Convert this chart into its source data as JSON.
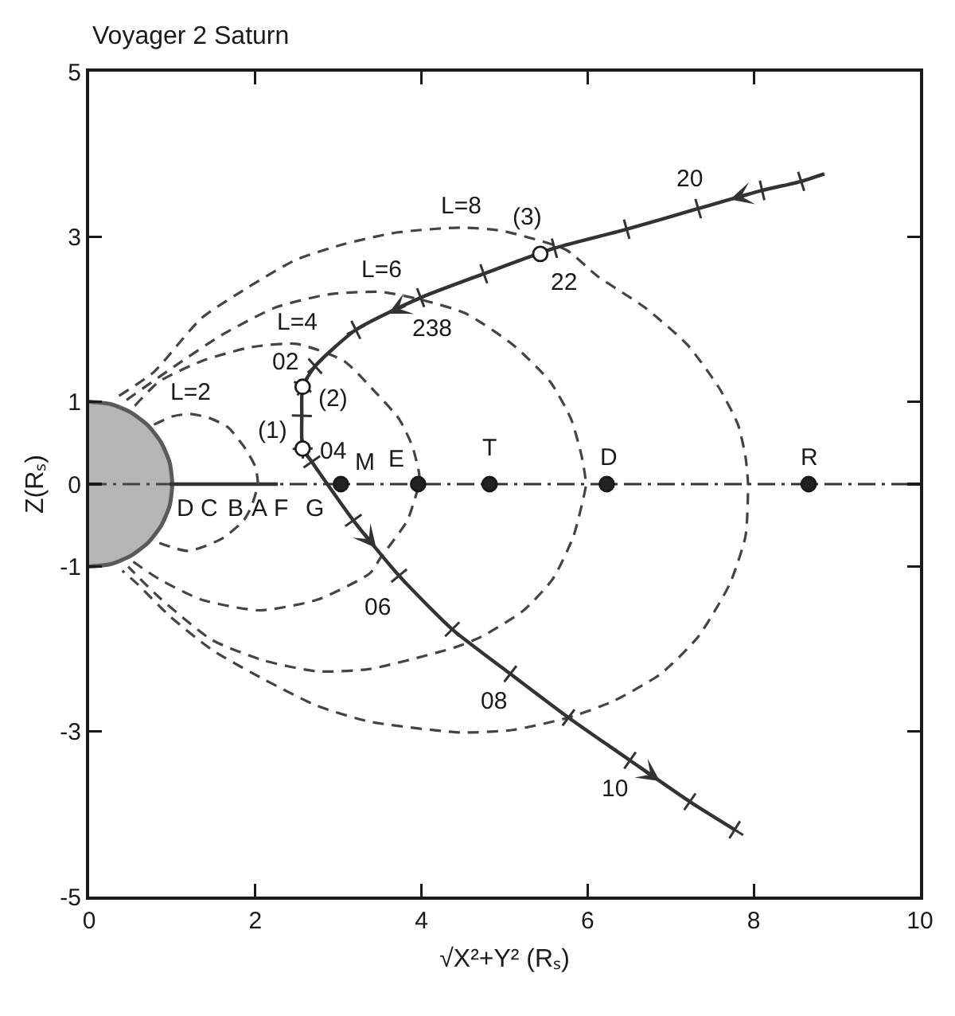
{
  "chart_data": {
    "type": "line",
    "title": "Voyager 2 Saturn",
    "xlabel": "√X²+Y² (Rₛ)",
    "ylabel": "Z(Rₛ)",
    "xlim": [
      0,
      10
    ],
    "xticks": [
      0,
      2,
      4,
      6,
      8,
      10
    ],
    "ylim": [
      -5,
      5
    ],
    "yticks": [
      -5,
      -3,
      -1,
      0,
      1,
      3,
      5
    ],
    "grid": false,
    "legend": false,
    "series": [
      {
        "type": "area",
        "color": "#5a5a5a",
        "x": [
          0,
          0.26,
          0.5,
          0.71,
          0.87,
          0.97,
          1,
          0.97,
          0.87,
          0.71,
          0.5,
          0.26,
          0
        ],
        "values": [
          1,
          0.97,
          0.87,
          0.71,
          0.5,
          0.26,
          0,
          -0.26,
          -0.5,
          -0.71,
          -0.87,
          -0.97,
          -1
        ]
      },
      {
        "color": "#333333",
        "line_style": "solid",
        "x": [
          0.97,
          2.27
        ],
        "values": [
          0,
          0
        ]
      },
      {
        "name": "L=2",
        "color": "#444444",
        "line_style": "dashed",
        "x": [
          0.78,
          1.0,
          1.22,
          1.45,
          1.67,
          1.86,
          2.0,
          2.03,
          1.95,
          1.86,
          1.6,
          1.19,
          0.78
        ],
        "values": [
          0.72,
          0.82,
          0.85,
          0.8,
          0.69,
          0.46,
          0.21,
          0,
          -0.28,
          -0.44,
          -0.66,
          -0.81,
          -0.69
        ]
      },
      {
        "name": "L=4",
        "color": "#444444",
        "line_style": "dashed",
        "x": [
          0.55,
          0.84,
          1.35,
          1.95,
          2.5,
          3.07,
          3.45,
          3.73,
          3.89,
          3.97,
          3.98,
          3.96,
          3.83,
          3.51,
          3.38,
          2.75,
          2.05,
          1.35,
          0.84,
          0.5
        ],
        "values": [
          0.95,
          1.24,
          1.49,
          1.66,
          1.7,
          1.49,
          1.11,
          0.79,
          0.46,
          0.14,
          0,
          -0.05,
          -0.44,
          -0.89,
          -1.08,
          -1.4,
          -1.53,
          -1.4,
          -1.15,
          -0.92
        ]
      },
      {
        "name": "L=6",
        "color": "#444444",
        "line_style": "dashed",
        "x": [
          0.45,
          1.03,
          1.6,
          2.24,
          2.88,
          3.51,
          4.02,
          4.53,
          5.1,
          5.55,
          5.8,
          5.93,
          5.98,
          5.96,
          5.83,
          5.58,
          5.23,
          4.72,
          4.4,
          3.38,
          2.75,
          2.11,
          1.48,
          0.84,
          0.47
        ],
        "values": [
          1.02,
          1.43,
          1.81,
          2.14,
          2.3,
          2.33,
          2.23,
          2.07,
          1.69,
          1.24,
          0.79,
          0.33,
          0,
          -0.12,
          -0.63,
          -1.15,
          -1.53,
          -1.85,
          -1.98,
          -2.24,
          -2.27,
          -2.14,
          -1.89,
          -1.37,
          -1.0
        ]
      },
      {
        "name": "L=8",
        "color": "#444444",
        "line_style": "dashed",
        "x": [
          0.36,
          0.78,
          1.35,
          1.92,
          2.49,
          3.07,
          3.7,
          4.47,
          4.97,
          5.74,
          6.12,
          6.69,
          7.2,
          7.58,
          7.81,
          7.9,
          7.93,
          7.9,
          7.71,
          7.33,
          6.88,
          6.31,
          5.77,
          5.1,
          4.47,
          3.38,
          2.75,
          2.11,
          1.48,
          0.97,
          0.58,
          0.4
        ],
        "values": [
          1.07,
          1.36,
          2.01,
          2.39,
          2.72,
          2.91,
          3.05,
          3.11,
          3.07,
          2.84,
          2.52,
          2.14,
          1.69,
          1.17,
          0.72,
          0.33,
          0,
          -0.63,
          -1.21,
          -1.85,
          -2.3,
          -2.63,
          -2.83,
          -2.98,
          -3.01,
          -2.88,
          -2.69,
          -2.37,
          -2.01,
          -1.6,
          -1.21,
          -1.05
        ]
      },
      {
        "color": "#333333",
        "line_style": "solid",
        "marker": "cross",
        "x": [
          8.85,
          8.57,
          8.1,
          7.33,
          6.47,
          5.6,
          4.75,
          3.99,
          3.21,
          2.72,
          2.57,
          2.56,
          2.57,
          2.68,
          3.18,
          3.73,
          4.37,
          5.07,
          5.77,
          6.51,
          7.23,
          7.77
        ],
        "values": [
          3.76,
          3.67,
          3.56,
          3.34,
          3.09,
          2.86,
          2.55,
          2.26,
          1.87,
          1.43,
          1.18,
          0.83,
          0.43,
          0.27,
          -0.44,
          -1.11,
          -1.76,
          -2.3,
          -2.83,
          -3.35,
          -3.85,
          -4.19
        ]
      },
      {
        "type": "scatter",
        "color": "#222222",
        "marker": "circle",
        "x": [
          3.03,
          3.96,
          4.82,
          6.23,
          8.66
        ],
        "values": [
          0,
          0,
          0,
          0,
          0
        ]
      },
      {
        "type": "scatter",
        "color": "#ffffff",
        "marker": "circle",
        "x": [
          2.57,
          2.57,
          5.43
        ],
        "values": [
          0.43,
          1.18,
          2.79
        ]
      }
    ],
    "ref_lines": [
      {
        "axis": "y",
        "value": 0,
        "line_style": "dashdot",
        "color": "#333333"
      }
    ],
    "annotations": [
      {
        "text": "20",
        "x": 7.33,
        "y": 3.34
      },
      {
        "text": "22",
        "x": 5.6,
        "y": 2.86
      },
      {
        "text": "238",
        "x": 3.99,
        "y": 2.26
      },
      {
        "text": "02",
        "x": 2.72,
        "y": 1.43
      },
      {
        "text": "04",
        "x": 2.68,
        "y": 0.27
      },
      {
        "text": "06",
        "x": 3.73,
        "y": -1.11
      },
      {
        "text": "08",
        "x": 5.07,
        "y": -2.3
      },
      {
        "text": "10",
        "x": 6.51,
        "y": -3.35
      },
      {
        "text": "(1)",
        "x": 2.57,
        "y": 0.43
      },
      {
        "text": "(2)",
        "x": 2.57,
        "y": 1.18
      },
      {
        "text": "(3)",
        "x": 5.43,
        "y": 2.79
      },
      {
        "text": "M",
        "x": 3.03,
        "y": 0
      },
      {
        "text": "E",
        "x": 3.96,
        "y": 0
      },
      {
        "text": "T",
        "x": 4.82,
        "y": 0
      },
      {
        "text": "D",
        "x": 6.23,
        "y": 0
      },
      {
        "text": "R",
        "x": 8.66,
        "y": 0
      },
      {
        "text": "D",
        "x": 1.16,
        "y": 0
      },
      {
        "text": "C",
        "x": 1.44,
        "y": 0
      },
      {
        "text": "B",
        "x": 1.76,
        "y": 0
      },
      {
        "text": "A",
        "x": 2.05,
        "y": 0
      },
      {
        "text": "F",
        "x": 2.3,
        "y": 0
      },
      {
        "text": "G",
        "x": 2.72,
        "y": 0
      }
    ]
  }
}
